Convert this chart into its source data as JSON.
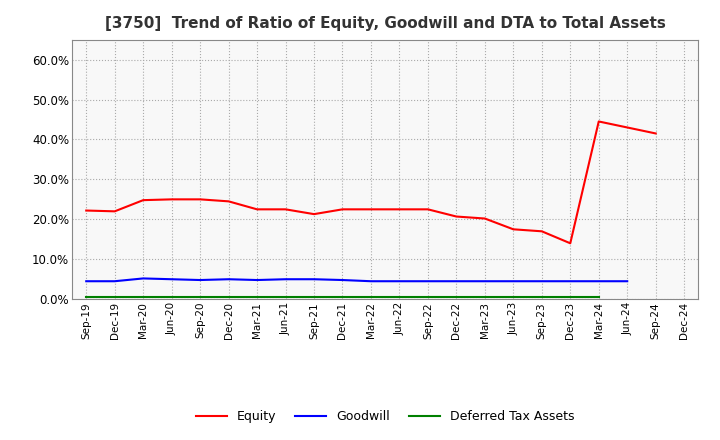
{
  "title": "[3750]  Trend of Ratio of Equity, Goodwill and DTA to Total Assets",
  "x_labels": [
    "Sep-19",
    "Dec-19",
    "Mar-20",
    "Jun-20",
    "Sep-20",
    "Dec-20",
    "Mar-21",
    "Jun-21",
    "Sep-21",
    "Dec-21",
    "Mar-22",
    "Jun-22",
    "Sep-22",
    "Dec-22",
    "Mar-23",
    "Jun-23",
    "Sep-23",
    "Dec-23",
    "Mar-24",
    "Jun-24",
    "Sep-24",
    "Dec-24"
  ],
  "equity": [
    0.222,
    0.22,
    0.248,
    0.25,
    0.25,
    0.245,
    0.225,
    0.225,
    0.213,
    0.225,
    0.225,
    0.225,
    0.225,
    0.207,
    0.202,
    0.175,
    0.17,
    0.14,
    0.445,
    0.43,
    0.415,
    null
  ],
  "goodwill": [
    0.045,
    0.045,
    0.052,
    0.05,
    0.048,
    0.05,
    0.048,
    0.05,
    0.05,
    0.048,
    0.045,
    0.045,
    0.045,
    0.045,
    0.045,
    0.045,
    0.045,
    0.045,
    0.045,
    0.045,
    null,
    null
  ],
  "dta": [
    0.005,
    0.005,
    0.005,
    0.005,
    0.005,
    0.005,
    0.005,
    0.005,
    0.005,
    0.005,
    0.005,
    0.005,
    0.005,
    0.005,
    0.005,
    0.005,
    0.005,
    0.005,
    0.005,
    null,
    null,
    null
  ],
  "equity_color": "#FF0000",
  "goodwill_color": "#0000FF",
  "dta_color": "#008000",
  "ylim": [
    0.0,
    0.65
  ],
  "yticks": [
    0.0,
    0.1,
    0.2,
    0.3,
    0.4,
    0.5,
    0.6
  ],
  "background_color": "#FFFFFF",
  "plot_bg_color": "#F8F8F8",
  "grid_color": "#AAAAAA",
  "spine_color": "#888888",
  "title_color": "#333333"
}
